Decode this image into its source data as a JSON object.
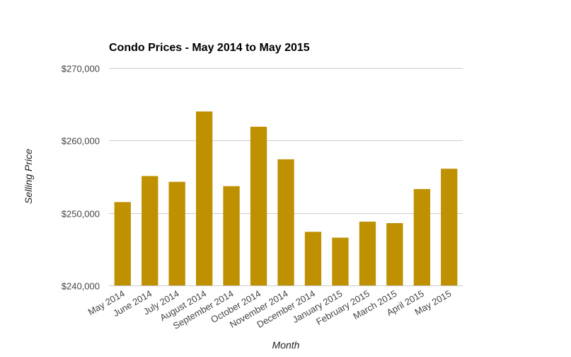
{
  "chart_data": {
    "type": "bar",
    "title": "Condo Prices - May 2014 to May 2015",
    "xlabel": "Month",
    "ylabel": "Selling Price",
    "ylim": [
      240000,
      270000
    ],
    "yticks": [
      240000,
      250000,
      260000,
      270000
    ],
    "ytick_labels": [
      "$240,000",
      "$250,000",
      "$260,000",
      "$270,000"
    ],
    "categories": [
      "May 2014",
      "June 2014",
      "July 2014",
      "August 2014",
      "September 2014",
      "October 2014",
      "November 2014",
      "December 2014",
      "January 2015",
      "February 2015",
      "March 2015",
      "April 2015",
      "May 2015"
    ],
    "values": [
      251500,
      255100,
      254300,
      264000,
      253700,
      261900,
      257400,
      247400,
      246600,
      248800,
      248600,
      253300,
      256100
    ],
    "bar_color": "#BF9000",
    "grid": true,
    "legend": "none"
  }
}
